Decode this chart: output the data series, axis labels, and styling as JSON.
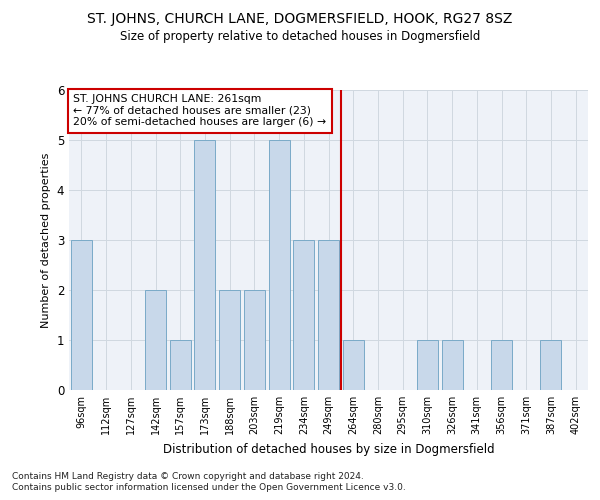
{
  "title": "ST. JOHNS, CHURCH LANE, DOGMERSFIELD, HOOK, RG27 8SZ",
  "subtitle": "Size of property relative to detached houses in Dogmersfield",
  "xlabel": "Distribution of detached houses by size in Dogmersfield",
  "ylabel": "Number of detached properties",
  "categories": [
    "96sqm",
    "112sqm",
    "127sqm",
    "142sqm",
    "157sqm",
    "173sqm",
    "188sqm",
    "203sqm",
    "219sqm",
    "234sqm",
    "249sqm",
    "264sqm",
    "280sqm",
    "295sqm",
    "310sqm",
    "326sqm",
    "341sqm",
    "356sqm",
    "371sqm",
    "387sqm",
    "402sqm"
  ],
  "values": [
    3,
    0,
    0,
    2,
    1,
    5,
    2,
    2,
    5,
    3,
    3,
    1,
    0,
    0,
    1,
    1,
    0,
    1,
    0,
    1,
    0
  ],
  "bar_color": "#c8d8ea",
  "bar_edge_color": "#7aaac8",
  "grid_color": "#d0d8e0",
  "vline_x": 10.5,
  "vline_color": "#cc0000",
  "annotation_text": "ST. JOHNS CHURCH LANE: 261sqm\n← 77% of detached houses are smaller (23)\n20% of semi-detached houses are larger (6) →",
  "annotation_box_facecolor": "#ffffff",
  "annotation_box_edgecolor": "#cc0000",
  "ylim": [
    0,
    6
  ],
  "yticks": [
    0,
    1,
    2,
    3,
    4,
    5,
    6
  ],
  "bg_color": "#eef2f8",
  "footer1": "Contains HM Land Registry data © Crown copyright and database right 2024.",
  "footer2": "Contains public sector information licensed under the Open Government Licence v3.0."
}
